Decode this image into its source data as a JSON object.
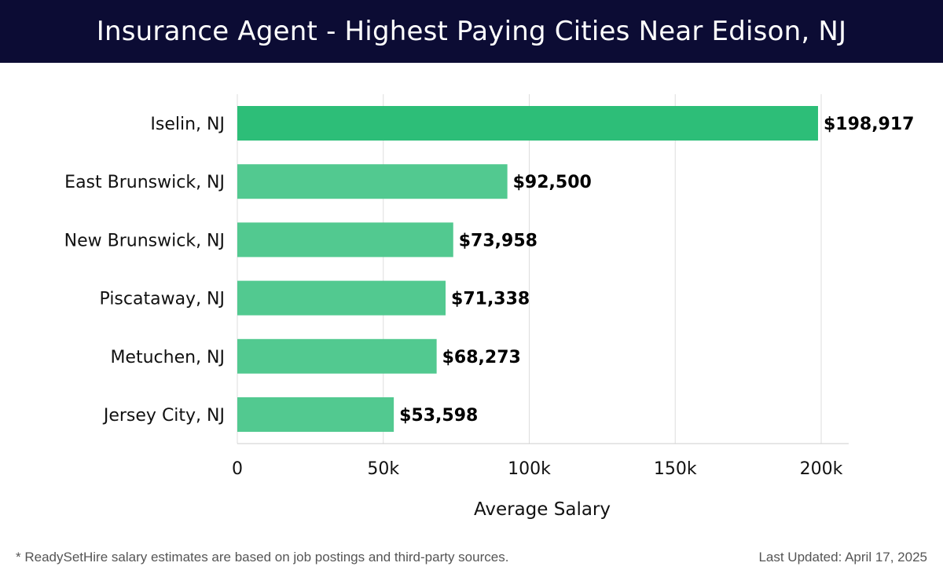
{
  "header": {
    "title": "Insurance Agent - Highest Paying Cities Near Edison, NJ"
  },
  "chart_data": {
    "type": "bar",
    "orientation": "horizontal",
    "categories": [
      "Iselin, NJ",
      "East Brunswick, NJ",
      "New Brunswick, NJ",
      "Piscataway, NJ",
      "Metuchen, NJ",
      "Jersey City, NJ"
    ],
    "values": [
      198917,
      92500,
      73958,
      71338,
      68273,
      53598
    ],
    "value_labels": [
      "$198,917",
      "$92,500",
      "$73,958",
      "$71,338",
      "$68,273",
      "$53,598"
    ],
    "xlabel": "Average Salary",
    "ylabel": "",
    "xlim": [
      0,
      210000
    ],
    "x_ticks": [
      0,
      50000,
      100000,
      150000,
      200000
    ],
    "x_tick_labels": [
      "0",
      "50k",
      "100k",
      "150k",
      "200k"
    ],
    "grid": true,
    "colors": {
      "highlight": "#2dbe78",
      "bar": "#52c990",
      "grid": "#dddddd",
      "axis": "#cccccc"
    }
  },
  "footer": {
    "footnote": "* ReadySetHire salary estimates are based on job postings and third-party sources.",
    "last_updated": "Last Updated: April 17, 2025"
  }
}
